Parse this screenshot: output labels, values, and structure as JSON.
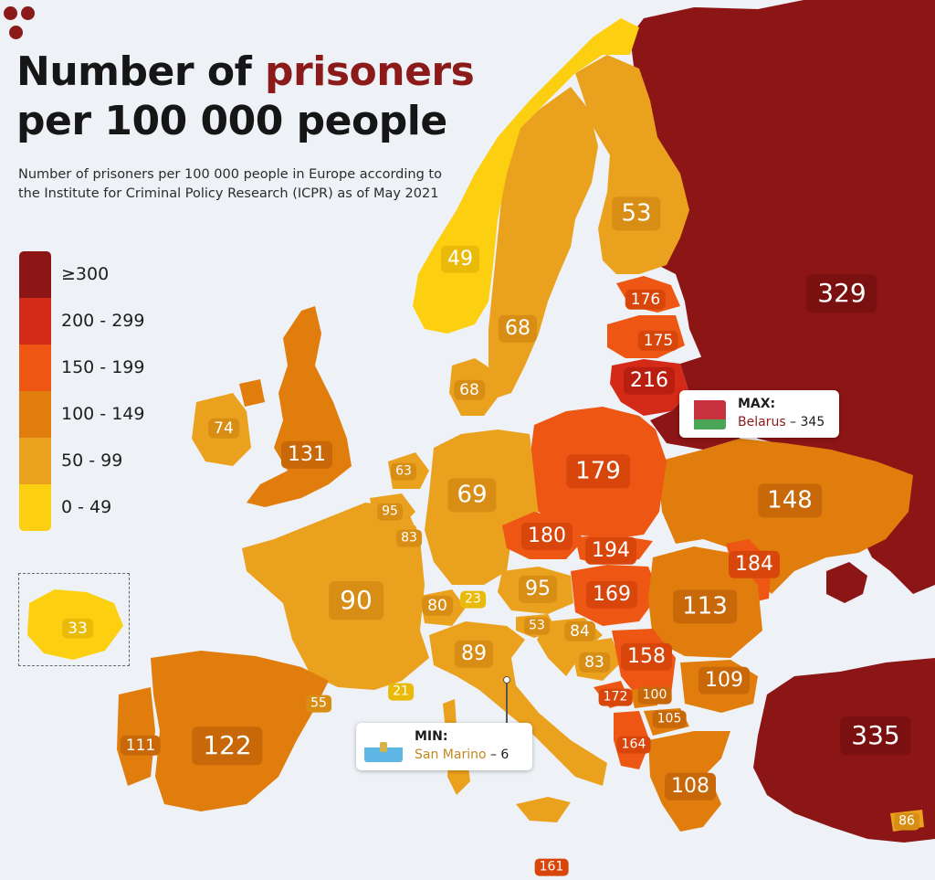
{
  "title": {
    "part1": "Number of ",
    "part2": "prisoners",
    "line2": "per 100 000 people"
  },
  "subtitle": "Number of prisoners per 100 000 people in Europe according to the Institute for Criminal Policy Research (ICPR) as of May 2021",
  "legend": [
    {
      "label": "≥300",
      "color": "#8c1515"
    },
    {
      "label": "200 - 299",
      "color": "#d42a18"
    },
    {
      "label": "150 - 199",
      "color": "#ee5614"
    },
    {
      "label": "100 - 149",
      "color": "#e07d0c"
    },
    {
      "label": "50 - 99",
      "color": "#eaa11e"
    },
    {
      "label": "0 - 49",
      "color": "#fcd010"
    }
  ],
  "colors": {
    "background": "#eef1f5",
    "title_accent": "#8b1a1a",
    "band_300_plus": "#8c1515",
    "band_200_299": "#d42a18",
    "band_150_199": "#ee5614",
    "band_100_149": "#e07d0c",
    "band_50_99": "#eaa11e",
    "band_0_49": "#fcd010"
  },
  "map_values": [
    {
      "value": "329",
      "band": "300"
    },
    {
      "value": "335",
      "band": "300"
    },
    {
      "value": "53",
      "band": "50"
    },
    {
      "value": "49",
      "band": "0"
    },
    {
      "value": "68",
      "band": "50"
    },
    {
      "value": "176",
      "band": "150"
    },
    {
      "value": "175",
      "band": "150"
    },
    {
      "value": "216",
      "band": "200"
    },
    {
      "value": "68",
      "band": "50"
    },
    {
      "value": "74",
      "band": "50"
    },
    {
      "value": "131",
      "band": "100"
    },
    {
      "value": "63",
      "band": "50"
    },
    {
      "value": "95",
      "band": "50"
    },
    {
      "value": "83",
      "band": "50"
    },
    {
      "value": "69",
      "band": "50"
    },
    {
      "value": "179",
      "band": "150"
    },
    {
      "value": "148",
      "band": "100"
    },
    {
      "value": "180",
      "band": "150"
    },
    {
      "value": "194",
      "band": "150"
    },
    {
      "value": "184",
      "band": "150"
    },
    {
      "value": "90",
      "band": "50"
    },
    {
      "value": "80",
      "band": "50"
    },
    {
      "value": "23",
      "band": "0"
    },
    {
      "value": "95",
      "band": "50"
    },
    {
      "value": "169",
      "band": "150"
    },
    {
      "value": "113",
      "band": "100"
    },
    {
      "value": "53",
      "band": "50"
    },
    {
      "value": "84",
      "band": "50"
    },
    {
      "value": "89",
      "band": "50"
    },
    {
      "value": "83",
      "band": "50"
    },
    {
      "value": "158",
      "band": "150"
    },
    {
      "value": "109",
      "band": "100"
    },
    {
      "value": "172",
      "band": "150"
    },
    {
      "value": "100",
      "band": "100"
    },
    {
      "value": "105",
      "band": "100"
    },
    {
      "value": "164",
      "band": "150"
    },
    {
      "value": "111",
      "band": "100"
    },
    {
      "value": "122",
      "band": "100"
    },
    {
      "value": "55",
      "band": "50"
    },
    {
      "value": "21",
      "band": "0"
    },
    {
      "value": "108",
      "band": "100"
    },
    {
      "value": "86",
      "band": "50"
    },
    {
      "value": "161",
      "band": "150"
    },
    {
      "value": "33",
      "band": "0"
    }
  ],
  "callout_max": {
    "heading": "MAX:",
    "country": "Belarus",
    "rest": " – 345"
  },
  "callout_min": {
    "heading": "MIN:",
    "country": "San Marino",
    "rest": " – 6"
  }
}
